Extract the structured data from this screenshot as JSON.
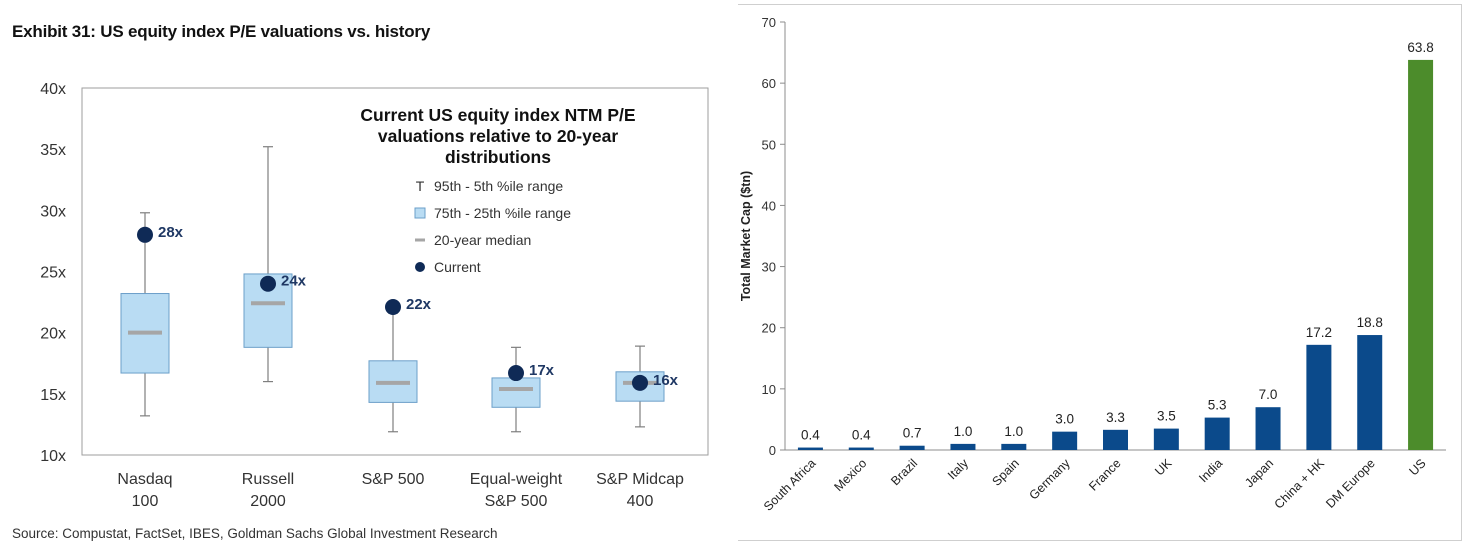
{
  "exhibit_title": "Exhibit 31: US equity index P/E valuations vs. history",
  "source": "Source: Compustat, FactSet, IBES, Goldman Sachs Global Investment Research",
  "colors": {
    "box_fill": "#b9dcf3",
    "box_stroke": "#6b9fc9",
    "median": "#a6a6a6",
    "whisker": "#7f7f7f",
    "current": "#0f2a56",
    "label_navy": "#1f3864",
    "bar_blue": "#0b4a8b",
    "bar_green": "#4c8c2b"
  },
  "chart_data": [
    {
      "type": "box",
      "title": "Current US equity index NTM P/E valuations relative to 20-year distributions",
      "title_lines": [
        "Current US equity index NTM P/E",
        "valuations relative to 20-year",
        "distributions"
      ],
      "ylim": [
        10,
        40
      ],
      "yticks": [
        10,
        15,
        20,
        25,
        30,
        35,
        40
      ],
      "ytick_labels": [
        "10x",
        "15x",
        "20x",
        "25x",
        "30x",
        "35x",
        "40x"
      ],
      "legend": {
        "position": "top-right",
        "items": [
          {
            "symbol": "T",
            "label": "95th - 5th %ile range"
          },
          {
            "symbol": "box",
            "label": "75th - 25th %ile range"
          },
          {
            "symbol": "dash",
            "label": "20-year median"
          },
          {
            "symbol": "dot",
            "label": "Current"
          }
        ]
      },
      "categories": [
        {
          "label_lines": [
            "Nasdaq",
            "100"
          ],
          "p5": 13.2,
          "p25": 16.7,
          "median": 20.0,
          "p75": 23.2,
          "p95": 29.8,
          "current": 28,
          "current_label": "28x"
        },
        {
          "label_lines": [
            "Russell",
            "2000"
          ],
          "p5": 16.0,
          "p25": 18.8,
          "median": 22.4,
          "p75": 24.8,
          "p95": 35.2,
          "current": 24,
          "current_label": "24x"
        },
        {
          "label_lines": [
            "S&P 500",
            ""
          ],
          "p5": 11.9,
          "p25": 14.3,
          "median": 15.9,
          "p75": 17.7,
          "p95": 21.6,
          "current": 22.1,
          "current_label": "22x"
        },
        {
          "label_lines": [
            "Equal-weight",
            "S&P 500"
          ],
          "p5": 11.9,
          "p25": 13.9,
          "median": 15.4,
          "p75": 16.3,
          "p95": 18.8,
          "current": 16.7,
          "current_label": "17x"
        },
        {
          "label_lines": [
            "S&P Midcap",
            "400"
          ],
          "p5": 12.3,
          "p25": 14.4,
          "median": 15.9,
          "p75": 16.8,
          "p95": 18.9,
          "current": 15.9,
          "current_label": "16x"
        }
      ]
    },
    {
      "type": "bar",
      "ylabel": "Total Market Cap ($tn)",
      "ylim": [
        0,
        70
      ],
      "yticks": [
        0,
        10,
        20,
        30,
        40,
        50,
        60,
        70
      ],
      "categories": [
        "South Africa",
        "Mexico",
        "Brazil",
        "Italy",
        "Spain",
        "Germany",
        "France",
        "UK",
        "India",
        "Japan",
        "China + HK",
        "DM Europe",
        "US"
      ],
      "values": [
        0.4,
        0.4,
        0.7,
        1.0,
        1.0,
        3.0,
        3.3,
        3.5,
        5.3,
        7.0,
        17.2,
        18.8,
        63.8
      ],
      "value_labels": [
        "0.4",
        "0.4",
        "0.7",
        "1.0",
        "1.0",
        "3.0",
        "3.3",
        "3.5",
        "5.3",
        "7.0",
        "17.2",
        "18.8",
        "63.8"
      ],
      "highlight": "US"
    }
  ]
}
